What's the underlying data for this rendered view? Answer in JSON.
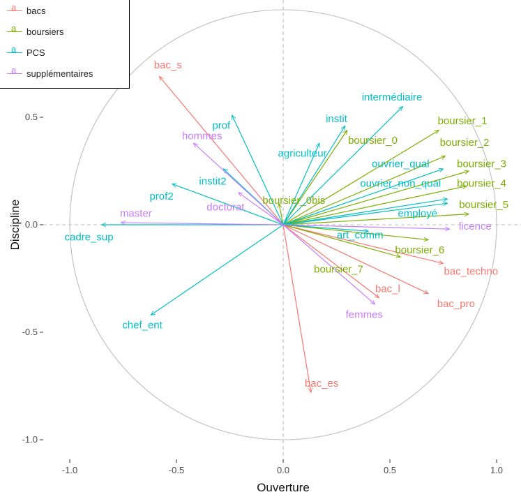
{
  "chart_data": {
    "type": "scatter",
    "subtype": "pca-correlation-circle",
    "xlabel": "Ouverture",
    "ylabel": "Discipline",
    "xlim": [
      -1.05,
      1.05
    ],
    "ylim": [
      -1.08,
      0.78
    ],
    "xticks": [
      -1.0,
      -0.5,
      0.0,
      0.5,
      1.0
    ],
    "yticks": [
      -1.0,
      -0.5,
      0.0,
      0.5
    ],
    "xtick_labels": [
      "-1.0",
      "-0.5",
      "0.0",
      "0.5",
      "1.0"
    ],
    "ytick_labels": [
      "-1.0",
      "-0.5",
      "0.0",
      "0.5"
    ],
    "legend_position": "top-left",
    "groups": [
      {
        "name": "bacs",
        "color": "#F8766D"
      },
      {
        "name": "boursiers",
        "color": "#7CAE00"
      },
      {
        "name": "PCS",
        "color": "#00BFC4"
      },
      {
        "name": "supplémentaires",
        "color": "#C77CFF"
      }
    ],
    "points": [
      {
        "label": "bac_s",
        "group": "bacs",
        "x": -0.58,
        "y": 0.69,
        "lx": -0.54,
        "ly": 0.74
      },
      {
        "label": "bac_es",
        "group": "bacs",
        "x": 0.13,
        "y": -0.78,
        "lx": 0.18,
        "ly": -0.74
      },
      {
        "label": "bac_l",
        "group": "bacs",
        "x": 0.45,
        "y": -0.34,
        "lx": 0.49,
        "ly": -0.3
      },
      {
        "label": "bac_pro",
        "group": "bacs",
        "x": 0.68,
        "y": -0.32,
        "lx": 0.81,
        "ly": -0.37
      },
      {
        "label": "bac_techno",
        "group": "bacs",
        "x": 0.75,
        "y": -0.18,
        "lx": 0.88,
        "ly": -0.22
      },
      {
        "label": "boursier_1",
        "group": "boursiers",
        "x": 0.73,
        "y": 0.44,
        "lx": 0.84,
        "ly": 0.48
      },
      {
        "label": "boursier_2",
        "group": "boursiers",
        "x": 0.76,
        "y": 0.32,
        "lx": 0.85,
        "ly": 0.38
      },
      {
        "label": "boursier_3",
        "group": "boursiers",
        "x": 0.87,
        "y": 0.25,
        "lx": 0.93,
        "ly": 0.28
      },
      {
        "label": "boursier_4",
        "group": "boursiers",
        "x": 0.86,
        "y": 0.18,
        "lx": 0.93,
        "ly": 0.19
      },
      {
        "label": "boursier_5",
        "group": "boursiers",
        "x": 0.87,
        "y": 0.05,
        "lx": 0.94,
        "ly": 0.09
      },
      {
        "label": "boursier_6",
        "group": "boursiers",
        "x": 0.68,
        "y": -0.07,
        "lx": 0.64,
        "ly": -0.12
      },
      {
        "label": "boursier_7",
        "group": "boursiers",
        "x": 0.55,
        "y": -0.15,
        "lx": 0.26,
        "ly": -0.21
      },
      {
        "label": "boursier_0",
        "group": "boursiers",
        "x": 0.3,
        "y": 0.44,
        "lx": 0.42,
        "ly": 0.39
      },
      {
        "label": "boursier_0bis",
        "group": "boursiers",
        "x": -0.02,
        "y": 0.1,
        "lx": 0.05,
        "ly": 0.11
      },
      {
        "label": "intermédiaire",
        "group": "PCS",
        "x": 0.56,
        "y": 0.55,
        "lx": 0.51,
        "ly": 0.59
      },
      {
        "label": "instit",
        "group": "PCS",
        "x": 0.29,
        "y": 0.46,
        "lx": 0.25,
        "ly": 0.49
      },
      {
        "label": "agriculteur",
        "group": "PCS",
        "x": 0.17,
        "y": 0.38,
        "lx": 0.09,
        "ly": 0.33
      },
      {
        "label": "ouvrier_qual",
        "group": "PCS",
        "x": 0.75,
        "y": 0.26,
        "lx": 0.55,
        "ly": 0.28
      },
      {
        "label": "ouvrier_non_qual",
        "group": "PCS",
        "x": 0.77,
        "y": 0.12,
        "lx": 0.55,
        "ly": 0.19
      },
      {
        "label": "employé",
        "group": "PCS",
        "x": 0.77,
        "y": 0.1,
        "lx": 0.63,
        "ly": 0.05
      },
      {
        "label": "art_comm",
        "group": "PCS",
        "x": 0.4,
        "y": -0.03,
        "lx": 0.36,
        "ly": -0.05
      },
      {
        "label": "prof",
        "group": "PCS",
        "x": -0.24,
        "y": 0.51,
        "lx": -0.29,
        "ly": 0.46
      },
      {
        "label": "prof2",
        "group": "PCS",
        "x": -0.52,
        "y": 0.19,
        "lx": -0.57,
        "ly": 0.13
      },
      {
        "label": "instit2",
        "group": "PCS",
        "x": -0.28,
        "y": 0.26,
        "lx": -0.33,
        "ly": 0.2
      },
      {
        "label": "cadre_sup",
        "group": "PCS",
        "x": -0.85,
        "y": 0.0,
        "lx": -0.91,
        "ly": -0.06
      },
      {
        "label": "chef_ent",
        "group": "PCS",
        "x": -0.62,
        "y": -0.42,
        "lx": -0.66,
        "ly": -0.47
      },
      {
        "label": "hommes",
        "group": "supplémentaires",
        "x": -0.42,
        "y": 0.38,
        "lx": -0.38,
        "ly": 0.41
      },
      {
        "label": "master",
        "group": "supplémentaires",
        "x": -0.76,
        "y": 0.01,
        "lx": -0.69,
        "ly": 0.05
      },
      {
        "label": "doctorat",
        "group": "supplémentaires",
        "x": -0.21,
        "y": 0.15,
        "lx": -0.27,
        "ly": 0.08
      },
      {
        "label": "licence",
        "group": "supplémentaires",
        "x": 0.78,
        "y": -0.02,
        "lx": 0.9,
        "ly": -0.01
      },
      {
        "label": "femmes",
        "group": "supplémentaires",
        "x": 0.43,
        "y": -0.37,
        "lx": 0.38,
        "ly": -0.42
      }
    ]
  }
}
